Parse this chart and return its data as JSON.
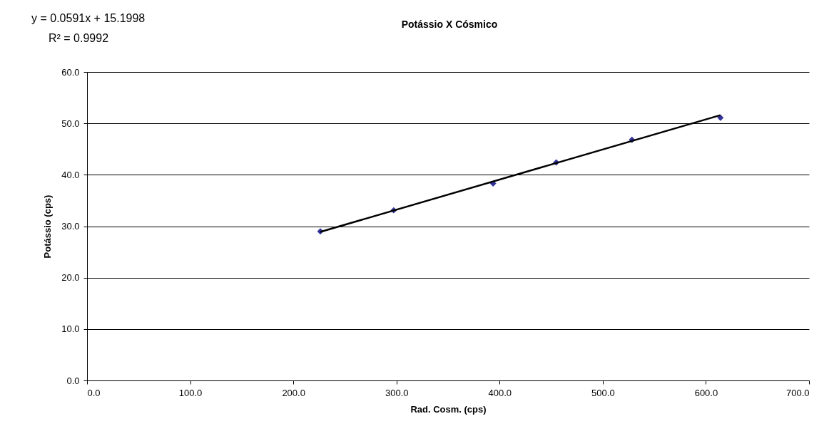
{
  "chart_data": {
    "type": "scatter",
    "title": "Potássio X Cósmico",
    "xlabel": "Rad. Cosm. (cps)",
    "ylabel": "Potássio (cps)",
    "annotations": [
      "y = 0.0591x + 15.1998",
      "R² = 0.9992"
    ],
    "series": [
      {
        "color": "#333399",
        "marker": "diamond",
        "x": [
          226.2,
          297.3,
          393.7,
          454.9,
          528.3,
          614.1
        ],
        "values": [
          29.0,
          33.1,
          38.3,
          42.4,
          46.8,
          51.1
        ]
      },
      {
        "type": "line",
        "color": "#000000",
        "line_style": "solid",
        "x": [
          226.2,
          614.1
        ],
        "values": [
          28.9,
          51.6
        ]
      }
    ],
    "xlim": [
      0,
      700
    ],
    "ylim": [
      0,
      60
    ],
    "xticks": [
      {
        "value": 0,
        "label": "0.0"
      },
      {
        "value": 100,
        "label": "100.0"
      },
      {
        "value": 200,
        "label": "200.0"
      },
      {
        "value": 300,
        "label": "300.0"
      },
      {
        "value": 400,
        "label": "400.0"
      },
      {
        "value": 500,
        "label": "500.0"
      },
      {
        "value": 600,
        "label": "600.0"
      },
      {
        "value": 700,
        "label": "700.0"
      }
    ],
    "yticks": [
      {
        "value": 0,
        "label": "0.0"
      },
      {
        "value": 10,
        "label": "10.0"
      },
      {
        "value": 20,
        "label": "20.0"
      },
      {
        "value": 30,
        "label": "30.0"
      },
      {
        "value": 40,
        "label": "40.0"
      },
      {
        "value": 50,
        "label": "50.0"
      },
      {
        "value": 60,
        "label": "60.0"
      }
    ],
    "grid": "y"
  }
}
